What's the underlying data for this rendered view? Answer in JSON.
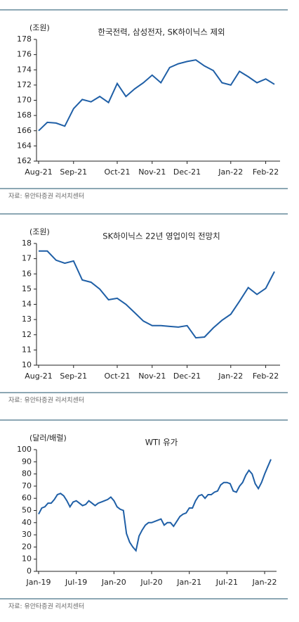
{
  "chart_data": [
    {
      "type": "line",
      "title": "한국전력, 삼성전자, SK하이닉스 제외",
      "y_label": "(조원)",
      "source": "자료: 유안타증권 리서치센터",
      "categories": [
        "Aug-21",
        null,
        null,
        null,
        "Sep-21",
        null,
        null,
        null,
        null,
        "Oct-21",
        null,
        null,
        null,
        "Nov-21",
        null,
        null,
        null,
        "Dec-21",
        null,
        null,
        null,
        null,
        "Jan-22",
        null,
        null,
        null,
        "Feb-22",
        null
      ],
      "series": [
        {
          "name": null,
          "color": "#1f5fa6",
          "values": [
            166.0,
            167.1,
            167.0,
            166.6,
            168.9,
            170.1,
            169.8,
            170.5,
            169.7,
            172.2,
            170.5,
            171.5,
            172.3,
            173.3,
            172.3,
            174.3,
            174.8,
            175.1,
            175.3,
            174.5,
            173.9,
            172.3,
            172.0,
            173.8,
            173.1,
            172.3,
            172.8,
            172.1
          ]
        }
      ],
      "ylim": [
        162,
        178
      ],
      "yticks": [
        162,
        164,
        166,
        168,
        170,
        172,
        174,
        176,
        178
      ]
    },
    {
      "type": "line",
      "title": "SK하이닉스 22년 영업이익 전망치",
      "y_label": "(조원)",
      "source": "자료: 유안타증권 리서치센터",
      "categories": [
        "Aug-21",
        null,
        null,
        null,
        "Sep-21",
        null,
        null,
        null,
        null,
        "Oct-21",
        null,
        null,
        null,
        "Nov-21",
        null,
        null,
        null,
        "Dec-21",
        null,
        null,
        null,
        null,
        "Jan-22",
        null,
        null,
        null,
        "Feb-22",
        null
      ],
      "series": [
        {
          "name": null,
          "color": "#1f5fa6",
          "values": [
            17.5,
            17.5,
            16.9,
            16.7,
            16.85,
            15.6,
            15.45,
            15.0,
            14.3,
            14.4,
            14.0,
            13.45,
            12.9,
            12.6,
            12.6,
            12.55,
            12.5,
            12.6,
            11.8,
            11.85,
            12.45,
            12.95,
            13.35,
            14.2,
            15.1,
            14.65,
            15.05,
            16.15
          ]
        }
      ],
      "ylim": [
        10,
        18
      ],
      "yticks": [
        10,
        11,
        12,
        13,
        14,
        15,
        16,
        17,
        18
      ]
    },
    {
      "type": "line",
      "title": "WTI 유가",
      "y_label": "(달러/배럴)",
      "source": "자료: 유안타증권 리서치센터",
      "categories": [
        "Jan-19",
        null,
        null,
        null,
        null,
        null,
        null,
        null,
        null,
        null,
        null,
        null,
        "Jul-19",
        null,
        null,
        null,
        null,
        null,
        null,
        null,
        null,
        null,
        null,
        null,
        "Jan-20",
        null,
        null,
        null,
        null,
        null,
        null,
        null,
        null,
        null,
        null,
        null,
        "Jul-20",
        null,
        null,
        null,
        null,
        null,
        null,
        null,
        null,
        null,
        null,
        null,
        "Jan-21",
        null,
        null,
        null,
        null,
        null,
        null,
        null,
        null,
        null,
        null,
        null,
        "Jul-21",
        null,
        null,
        null,
        null,
        null,
        null,
        null,
        null,
        null,
        null,
        null,
        "Jan-22",
        null,
        null
      ],
      "series": [
        {
          "name": null,
          "color": "#1f5fa6",
          "values": [
            47,
            52,
            53,
            56,
            56,
            59,
            63,
            64,
            62,
            58,
            53,
            57,
            58,
            56,
            54,
            55,
            58,
            56,
            54,
            56,
            57,
            58,
            59,
            61,
            58,
            53,
            51,
            50,
            31,
            24,
            20,
            17,
            29,
            34,
            38,
            40,
            40,
            41,
            42,
            43,
            38,
            40,
            40,
            37,
            41,
            45,
            47,
            48,
            52,
            52,
            58,
            62,
            63,
            60,
            63,
            63,
            65,
            66,
            71,
            73,
            73,
            72,
            66,
            65,
            70,
            73,
            79,
            83,
            80,
            72,
            68,
            73,
            80,
            86,
            92
          ]
        }
      ],
      "ylim": [
        0,
        100
      ],
      "yticks": [
        0,
        10,
        20,
        30,
        40,
        50,
        60,
        70,
        80,
        90,
        100
      ]
    }
  ]
}
